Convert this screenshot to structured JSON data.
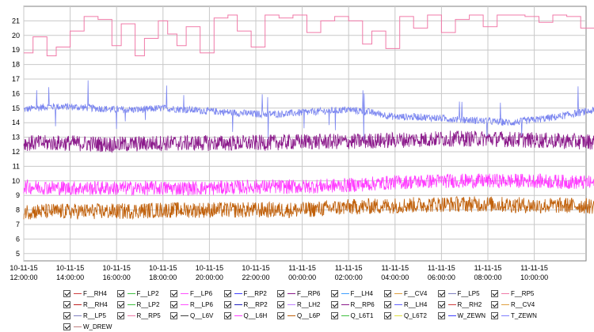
{
  "chart_data": {
    "type": "line",
    "title": "",
    "xlabel": "",
    "ylabel": "",
    "ylim": [
      4.5,
      22
    ],
    "yticks": [
      5,
      6,
      7,
      8,
      9,
      10,
      11,
      12,
      13,
      14,
      15,
      16,
      17,
      18,
      19,
      20,
      21
    ],
    "x_start_label": "10-11-15 12:00:00",
    "x_ticks": [
      {
        "date": "10-11-15",
        "time": "12:00:00"
      },
      {
        "date": "10-11-15",
        "time": "14:00:00"
      },
      {
        "date": "10-11-15",
        "time": "16:00:00"
      },
      {
        "date": "10-11-15",
        "time": "18:00:00"
      },
      {
        "date": "10-11-15",
        "time": "20:00:00"
      },
      {
        "date": "10-11-15",
        "time": "22:00:00"
      },
      {
        "date": "11-11-15",
        "time": "00:00:00"
      },
      {
        "date": "11-11-15",
        "time": "02:00:00"
      },
      {
        "date": "11-11-15",
        "time": "04:00:00"
      },
      {
        "date": "11-11-15",
        "time": "06:00:00"
      },
      {
        "date": "11-11-15",
        "time": "08:00:00"
      },
      {
        "date": "11-11-15",
        "time": "10:00:00"
      }
    ],
    "x_hours_visible": 25.2,
    "grid": true,
    "legend_position": "bottom",
    "visible_series": [
      {
        "color": "#f07aa8",
        "style": "step",
        "hours": [
          0,
          0.4,
          0.4,
          1.0,
          1.0,
          1.4,
          1.4,
          2.0,
          2.0,
          2.6,
          2.6,
          3.2,
          3.2,
          3.8,
          3.8,
          4.2,
          4.2,
          4.8,
          4.8,
          5.2,
          5.2,
          5.8,
          5.8,
          6.2,
          6.2,
          6.6,
          6.6,
          7.0,
          7.0,
          7.6,
          7.6,
          8.2,
          8.2,
          8.8,
          8.8,
          9.2,
          9.2,
          9.8,
          9.8,
          10.4,
          10.4,
          11.0,
          11.0,
          11.6,
          11.6,
          12.2,
          12.2,
          12.8,
          12.8,
          13.4,
          13.4,
          14.0,
          14.0,
          14.6,
          14.6,
          15.0,
          15.0,
          15.6,
          15.6,
          16.2,
          16.2,
          16.8,
          16.8,
          17.4,
          17.4,
          18.0,
          18.0,
          18.6,
          18.6,
          19.2,
          19.2,
          19.8,
          19.8,
          20.4,
          20.4,
          21.0,
          21.0,
          21.6,
          21.6,
          22.2,
          22.2,
          22.8,
          22.8,
          23.4,
          23.4,
          24.0,
          24.0,
          24.6,
          24.6,
          25.2
        ],
        "values": [
          18.8,
          18.8,
          19.9,
          19.9,
          18.6,
          18.6,
          19.2,
          19.2,
          20.3,
          20.3,
          21.3,
          21.3,
          21.1,
          21.1,
          19.3,
          19.3,
          20.8,
          20.8,
          18.6,
          18.6,
          19.8,
          19.8,
          21.0,
          21.0,
          20.1,
          20.1,
          19.3,
          19.3,
          20.6,
          20.6,
          18.8,
          18.8,
          21.2,
          21.2,
          21.4,
          21.4,
          20.3,
          20.3,
          19.2,
          19.2,
          21.4,
          21.4,
          21.2,
          21.2,
          21.4,
          21.4,
          20.2,
          20.2,
          21.0,
          21.0,
          21.3,
          21.3,
          21.0,
          21.0,
          19.4,
          19.4,
          20.3,
          20.3,
          19.1,
          19.1,
          21.3,
          21.3,
          20.5,
          20.5,
          21.4,
          21.4,
          20.2,
          20.2,
          21.1,
          21.1,
          21.4,
          21.4,
          20.6,
          20.6,
          21.4,
          21.4,
          21.4,
          21.4,
          21.3,
          21.3,
          20.9,
          20.9,
          21.4,
          21.4,
          21.3,
          21.3,
          20.5,
          20.5,
          20.7,
          20.7
        ]
      },
      {
        "color": "#7b86f0",
        "style": "noisy",
        "noise": 0.25,
        "spikes": true,
        "hours": [
          0,
          1,
          2,
          3,
          4,
          5,
          6,
          7,
          8,
          9,
          10,
          11,
          12,
          13,
          14,
          15,
          16,
          17,
          18,
          19,
          20,
          21,
          22,
          23,
          24,
          25.2
        ],
        "values": [
          14.9,
          15.1,
          15.1,
          15.0,
          14.9,
          14.9,
          15.0,
          14.9,
          14.8,
          14.7,
          14.6,
          14.6,
          14.7,
          14.8,
          14.9,
          14.7,
          14.4,
          14.4,
          14.3,
          14.2,
          14.1,
          14.0,
          14.2,
          14.4,
          14.7,
          15.0
        ]
      },
      {
        "color": "#8b1a8b",
        "style": "noisy",
        "noise": 0.55,
        "hours": [
          0,
          2,
          4,
          6,
          8,
          10,
          12,
          14,
          16,
          18,
          20,
          22,
          24,
          25.2
        ],
        "values": [
          12.6,
          12.6,
          12.5,
          12.6,
          12.6,
          12.6,
          12.7,
          12.7,
          12.8,
          12.9,
          12.9,
          12.8,
          12.7,
          12.7
        ]
      },
      {
        "color": "#ff3cff",
        "style": "noisy",
        "noise": 0.5,
        "hours": [
          0,
          2,
          4,
          6,
          8,
          10,
          12,
          14,
          16,
          18,
          20,
          22,
          24,
          25.2
        ],
        "values": [
          9.6,
          9.5,
          9.5,
          9.5,
          9.5,
          9.6,
          9.6,
          9.7,
          9.9,
          10.0,
          10.0,
          10.0,
          9.9,
          9.8
        ]
      },
      {
        "color": "#c0600a",
        "style": "noisy",
        "noise": 0.55,
        "hours": [
          0,
          2,
          4,
          6,
          8,
          10,
          12,
          14,
          16,
          18,
          20,
          22,
          24,
          25.2
        ],
        "values": [
          7.9,
          7.9,
          7.9,
          8.0,
          8.0,
          8.0,
          8.0,
          8.2,
          8.3,
          8.4,
          8.4,
          8.3,
          8.3,
          8.2
        ]
      }
    ]
  },
  "legend": [
    {
      "label": "F__RH4",
      "color": "#d04040"
    },
    {
      "label": "F__LP2",
      "color": "#40c040"
    },
    {
      "label": "F__LP6",
      "color": "#ff4fff"
    },
    {
      "label": "F__RP2",
      "color": "#4040ff"
    },
    {
      "label": "F__RP6",
      "color": "#8b1a8b"
    },
    {
      "label": "F__LH4",
      "color": "#40a0ff"
    },
    {
      "label": "F__CV4",
      "color": "#e0a040"
    },
    {
      "label": "F__LP5",
      "color": "#8080c0"
    },
    {
      "label": "F__RP5",
      "color": "#f07aa8"
    },
    {
      "label": "R__RH4",
      "color": "#c02020"
    },
    {
      "label": "R__LP2",
      "color": "#40c040"
    },
    {
      "label": "R__LP6",
      "color": "#ff4fff"
    },
    {
      "label": "R__RP2",
      "color": "#2020c0"
    },
    {
      "label": "R__LH2",
      "color": "#c080ff"
    },
    {
      "label": "R__RP6",
      "color": "#8b1a8b"
    },
    {
      "label": "R__LH4",
      "color": "#6060ff"
    },
    {
      "label": "R__RH2",
      "color": "#d04040"
    },
    {
      "label": "R__CV4",
      "color": "#e0a040"
    },
    {
      "label": "R__LP5",
      "color": "#8080c0"
    },
    {
      "label": "R__RP5",
      "color": "#f07aa8"
    },
    {
      "label": "Q__L6V",
      "color": "#404040"
    },
    {
      "label": "Q__L6H",
      "color": "#ff3cff"
    },
    {
      "label": "Q__L6P",
      "color": "#c0600a"
    },
    {
      "label": "Q_L6T1",
      "color": "#40c040"
    },
    {
      "label": "Q_L6T2",
      "color": "#e0e040"
    },
    {
      "label": "W_ZEWN",
      "color": "#4040ff"
    },
    {
      "label": "T_ZEWN",
      "color": "#8080ff"
    },
    {
      "label": "W_DREW",
      "color": "#c08080"
    }
  ]
}
